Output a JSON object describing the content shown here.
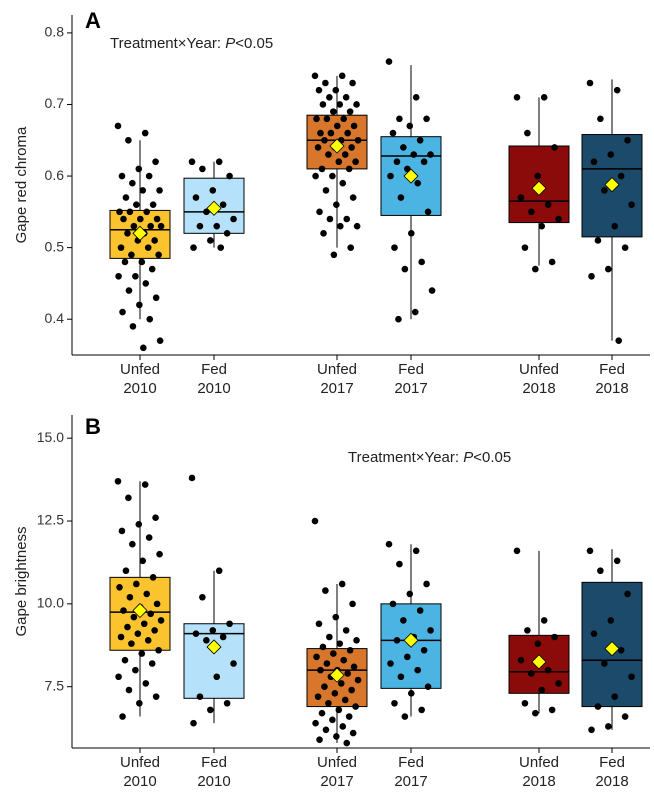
{
  "chart_data": [
    {
      "type": "box",
      "panel_label": "A",
      "ylabel": "Gape red chroma",
      "annotation": [
        "Treatment×Year: ",
        "P",
        "<0.05"
      ],
      "categories": [
        [
          "Unfed",
          "2010"
        ],
        [
          "Fed",
          "2010"
        ],
        [
          "Unfed",
          "2017"
        ],
        [
          "Fed",
          "2017"
        ],
        [
          "Unfed",
          "2018"
        ],
        [
          "Fed",
          "2018"
        ]
      ],
      "ylim": [
        0.35,
        0.825
      ],
      "yticks": [
        0.4,
        0.5,
        0.6,
        0.7,
        0.8
      ],
      "mean_color": "#ffff00",
      "boxes": [
        {
          "color": "#fbc42f",
          "q1": 0.485,
          "median": 0.525,
          "q3": 0.552,
          "whisker_low": 0.4,
          "whisker_high": 0.65,
          "mean": 0.52,
          "points": [
            0.67,
            0.66,
            0.65,
            0.62,
            0.61,
            0.6,
            0.6,
            0.59,
            0.58,
            0.58,
            0.57,
            0.56,
            0.56,
            0.55,
            0.55,
            0.55,
            0.54,
            0.54,
            0.54,
            0.53,
            0.53,
            0.53,
            0.52,
            0.52,
            0.51,
            0.51,
            0.5,
            0.5,
            0.49,
            0.49,
            0.48,
            0.48,
            0.47,
            0.46,
            0.46,
            0.45,
            0.44,
            0.43,
            0.42,
            0.41,
            0.4,
            0.39,
            0.37,
            0.36
          ]
        },
        {
          "color": "#b5e2fa",
          "q1": 0.52,
          "median": 0.55,
          "q3": 0.597,
          "whisker_low": 0.5,
          "whisker_high": 0.62,
          "mean": 0.555,
          "points": [
            0.62,
            0.62,
            0.61,
            0.6,
            0.58,
            0.57,
            0.56,
            0.55,
            0.54,
            0.53,
            0.53,
            0.52,
            0.51,
            0.5,
            0.5
          ]
        },
        {
          "color": "#d8762b",
          "q1": 0.61,
          "median": 0.65,
          "q3": 0.685,
          "whisker_low": 0.5,
          "whisker_high": 0.74,
          "mean": 0.642,
          "points": [
            0.74,
            0.74,
            0.73,
            0.73,
            0.72,
            0.72,
            0.71,
            0.71,
            0.7,
            0.7,
            0.7,
            0.69,
            0.69,
            0.68,
            0.68,
            0.68,
            0.67,
            0.67,
            0.66,
            0.66,
            0.66,
            0.65,
            0.65,
            0.65,
            0.64,
            0.64,
            0.64,
            0.63,
            0.63,
            0.62,
            0.62,
            0.61,
            0.61,
            0.6,
            0.6,
            0.59,
            0.58,
            0.57,
            0.56,
            0.55,
            0.54,
            0.54,
            0.53,
            0.53,
            0.52,
            0.5,
            0.49
          ]
        },
        {
          "color": "#4bb4e2",
          "q1": 0.545,
          "median": 0.628,
          "q3": 0.655,
          "whisker_low": 0.4,
          "whisker_high": 0.755,
          "mean": 0.6,
          "points": [
            0.76,
            0.71,
            0.68,
            0.68,
            0.67,
            0.66,
            0.65,
            0.64,
            0.63,
            0.63,
            0.62,
            0.62,
            0.61,
            0.6,
            0.59,
            0.57,
            0.55,
            0.52,
            0.5,
            0.48,
            0.47,
            0.44,
            0.41,
            0.4
          ]
        },
        {
          "color": "#8b0a0a",
          "q1": 0.535,
          "median": 0.565,
          "q3": 0.642,
          "whisker_low": 0.475,
          "whisker_high": 0.71,
          "mean": 0.583,
          "points": [
            0.71,
            0.71,
            0.66,
            0.64,
            0.6,
            0.57,
            0.56,
            0.55,
            0.54,
            0.53,
            0.5,
            0.48,
            0.47
          ]
        },
        {
          "color": "#1b4a6b",
          "q1": 0.515,
          "median": 0.61,
          "q3": 0.658,
          "whisker_low": 0.37,
          "whisker_high": 0.735,
          "mean": 0.588,
          "points": [
            0.73,
            0.72,
            0.68,
            0.65,
            0.63,
            0.62,
            0.6,
            0.58,
            0.56,
            0.53,
            0.51,
            0.5,
            0.47,
            0.46,
            0.37
          ]
        }
      ]
    },
    {
      "type": "box",
      "panel_label": "B",
      "ylabel": "Gape brightness",
      "annotation": [
        "Treatment×Year: ",
        "P",
        "<0.05"
      ],
      "categories": [
        [
          "Unfed",
          "2010"
        ],
        [
          "Fed",
          "2010"
        ],
        [
          "Unfed",
          "2017"
        ],
        [
          "Fed",
          "2017"
        ],
        [
          "Unfed",
          "2018"
        ],
        [
          "Fed",
          "2018"
        ]
      ],
      "ylim": [
        5.65,
        15.7
      ],
      "yticks": [
        {
          "value": 15,
          "label": "15.0"
        },
        12.5,
        {
          "value": 10,
          "label": "10.0"
        },
        7.5
      ],
      "mean_color": "#ffff00",
      "boxes": [
        {
          "color": "#fbc42f",
          "q1": 8.6,
          "median": 9.75,
          "q3": 10.8,
          "whisker_low": 6.6,
          "whisker_high": 13.7,
          "mean": 9.8,
          "points": [
            13.7,
            13.6,
            13.2,
            12.6,
            12.4,
            12.2,
            12,
            11.8,
            11.5,
            11.3,
            11,
            10.8,
            10.6,
            10.5,
            10.3,
            10.2,
            10,
            9.9,
            9.8,
            9.7,
            9.6,
            9.5,
            9.4,
            9.3,
            9.2,
            9.1,
            9,
            8.9,
            8.8,
            8.6,
            8.5,
            8.3,
            8.2,
            8,
            7.8,
            7.6,
            7.4,
            7.2,
            7,
            6.6
          ]
        },
        {
          "color": "#b5e2fa",
          "q1": 7.15,
          "median": 9.1,
          "q3": 9.4,
          "whisker_low": 6.4,
          "whisker_high": 11,
          "mean": 8.7,
          "points": [
            13.8,
            11,
            10.2,
            9.4,
            9.2,
            9.1,
            9,
            8.9,
            8.2,
            7.8,
            7.2,
            7,
            6.8,
            6.4
          ]
        },
        {
          "color": "#d8762b",
          "q1": 6.9,
          "median": 8.0,
          "q3": 8.65,
          "whisker_low": 5.8,
          "whisker_high": 10.6,
          "mean": 7.85,
          "points": [
            12.5,
            10.6,
            10.4,
            10,
            9.6,
            9.4,
            9.2,
            9,
            8.9,
            8.8,
            8.7,
            8.6,
            8.5,
            8.4,
            8.3,
            8.2,
            8.1,
            8,
            8,
            7.9,
            7.8,
            7.7,
            7.6,
            7.5,
            7.4,
            7.3,
            7.2,
            7.1,
            7,
            6.9,
            6.8,
            6.7,
            6.6,
            6.5,
            6.4,
            6.3,
            6.2,
            6.1,
            6,
            5.9,
            5.8
          ]
        },
        {
          "color": "#4bb4e2",
          "q1": 7.45,
          "median": 8.9,
          "q3": 10.0,
          "whisker_low": 6.6,
          "whisker_high": 11.8,
          "mean": 8.9,
          "points": [
            11.8,
            11.6,
            11.2,
            10.6,
            10.3,
            10,
            9.8,
            9.5,
            9.2,
            9,
            8.9,
            8.6,
            8.4,
            8.2,
            8,
            7.8,
            7.5,
            7.3,
            7,
            6.8,
            6.6
          ]
        },
        {
          "color": "#8b0a0a",
          "q1": 7.3,
          "median": 7.95,
          "q3": 9.05,
          "whisker_low": 6.7,
          "whisker_high": 11.6,
          "mean": 8.25,
          "points": [
            11.6,
            9.5,
            9.2,
            9,
            8.8,
            8.3,
            8,
            7.9,
            7.6,
            7.4,
            7,
            6.8,
            6.7
          ]
        },
        {
          "color": "#1b4a6b",
          "q1": 6.9,
          "median": 8.3,
          "q3": 10.65,
          "whisker_low": 6.2,
          "whisker_high": 11.65,
          "mean": 8.65,
          "points": [
            11.6,
            11.3,
            11,
            10.3,
            9.5,
            9.1,
            8.6,
            8.2,
            7.8,
            7.2,
            6.9,
            6.6,
            6.3,
            6.2
          ]
        }
      ]
    }
  ]
}
